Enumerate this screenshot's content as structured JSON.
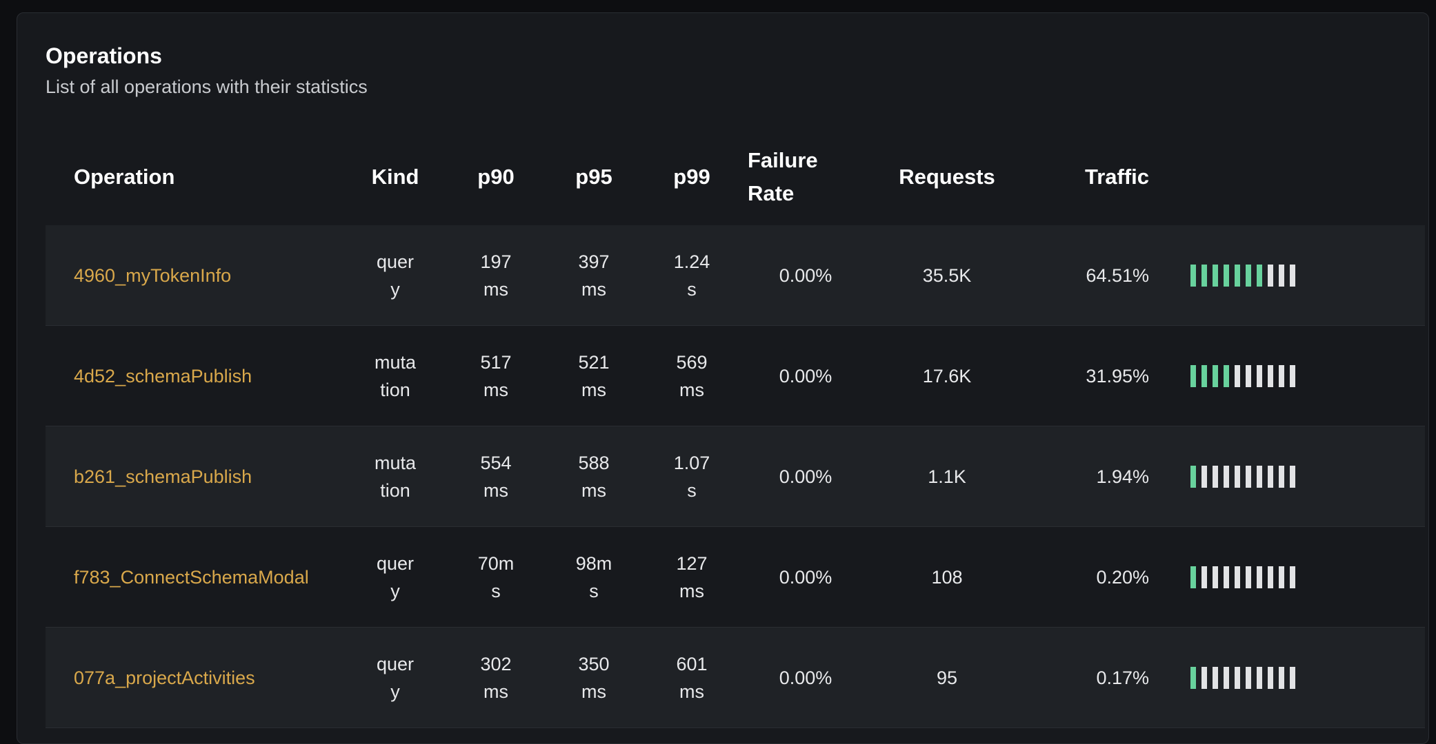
{
  "card": {
    "title": "Operations",
    "subtitle": "List of all operations with their statistics"
  },
  "colors": {
    "operation_link": "#d9a84b",
    "traffic_bar_filled": "#68d29d",
    "traffic_bar_empty": "#e2e3e5"
  },
  "table": {
    "headers": {
      "operation": "Operation",
      "kind": "Kind",
      "p90": "p90",
      "p95": "p95",
      "p99": "p99",
      "failure_rate": "Failure Rate",
      "requests": "Requests",
      "traffic": "Traffic"
    },
    "rows": [
      {
        "operation": "4960_myTokenInfo",
        "kind": "query",
        "p90": "197 ms",
        "p95": "397 ms",
        "p99": "1.24 s",
        "failure_rate": "0.00%",
        "requests": "35.5K",
        "traffic": "64.51%",
        "bars_filled": 7,
        "bars_total": 10
      },
      {
        "operation": "4d52_schemaPublish",
        "kind": "mutation",
        "p90": "517 ms",
        "p95": "521 ms",
        "p99": "569 ms",
        "failure_rate": "0.00%",
        "requests": "17.6K",
        "traffic": "31.95%",
        "bars_filled": 4,
        "bars_total": 10
      },
      {
        "operation": "b261_schemaPublish",
        "kind": "mutation",
        "p90": "554 ms",
        "p95": "588 ms",
        "p99": "1.07 s",
        "failure_rate": "0.00%",
        "requests": "1.1K",
        "traffic": "1.94%",
        "bars_filled": 1,
        "bars_total": 10
      },
      {
        "operation": "f783_ConnectSchemaModal",
        "kind": "query",
        "p90": "70ms",
        "p95": "98ms",
        "p99": "127 ms",
        "failure_rate": "0.00%",
        "requests": "108",
        "traffic": "0.20%",
        "bars_filled": 1,
        "bars_total": 10
      },
      {
        "operation": "077a_projectActivities",
        "kind": "query",
        "p90": "302 ms",
        "p95": "350 ms",
        "p99": "601 ms",
        "failure_rate": "0.00%",
        "requests": "95",
        "traffic": "0.17%",
        "bars_filled": 1,
        "bars_total": 10
      }
    ]
  }
}
